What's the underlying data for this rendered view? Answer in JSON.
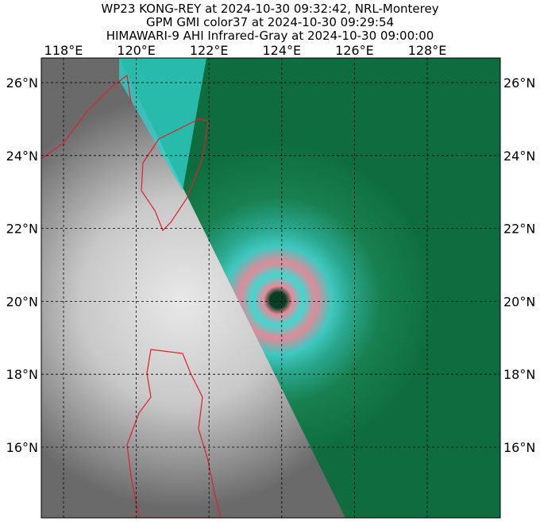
{
  "header": {
    "lines": [
      "WP23 KONG-REY at 2024-10-30 09:32:42, NRL-Monterey",
      "GPM GMI color37 at 2024-10-30 09:29:54",
      "HIMAWARI-9 AHI Infrared-Gray at 2024-10-30 09:00:00"
    ]
  },
  "map": {
    "lon_labels": [
      "118°E",
      "120°E",
      "122°E",
      "124°E",
      "126°E",
      "128°E"
    ],
    "lat_labels": [
      "26°N",
      "24°N",
      "22°N",
      "20°N",
      "18°N",
      "16°N"
    ]
  }
}
